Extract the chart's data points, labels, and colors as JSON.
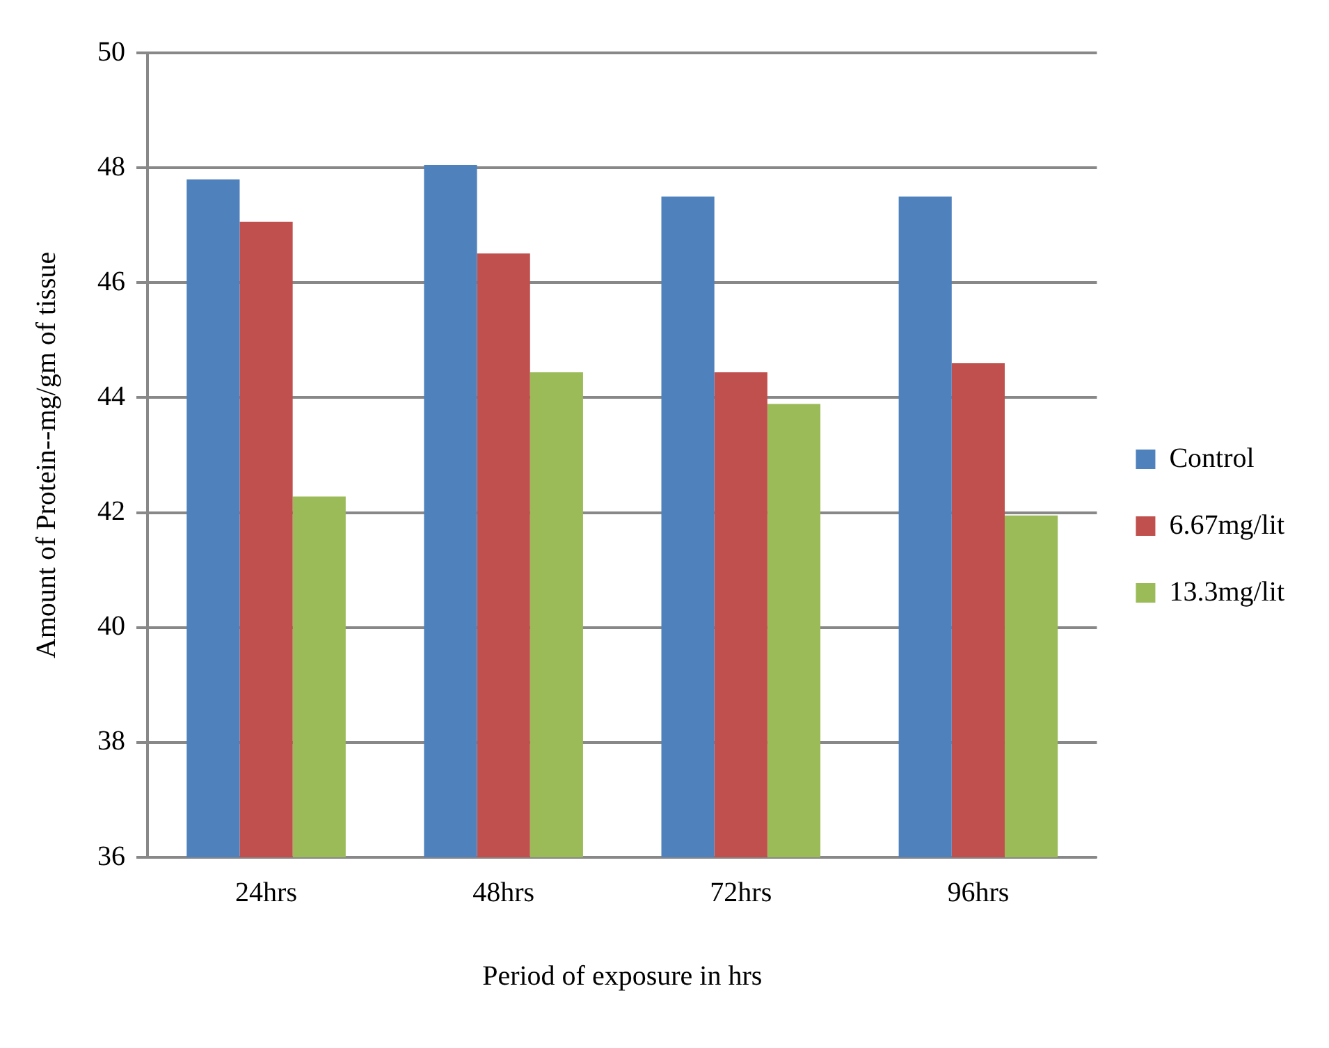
{
  "chart_data": {
    "type": "bar",
    "xlabel": "Period of exposure in hrs",
    "ylabel": "Amount of Protein--mg/gm of tissue",
    "categories": [
      "24hrs",
      "48hrs",
      "72hrs",
      "96hrs"
    ],
    "series": [
      {
        "name": "Control",
        "color": "#4f81bd",
        "values": [
          47.8,
          48.05,
          47.5,
          47.5
        ]
      },
      {
        "name": "6.67mg/lit",
        "color": "#c0504d",
        "values": [
          47.06,
          46.51,
          44.44,
          44.6
        ]
      },
      {
        "name": "13.3mg/lit",
        "color": "#9bbb59",
        "values": [
          42.28,
          44.44,
          43.89,
          41.95
        ]
      }
    ],
    "ylim": [
      36,
      50
    ],
    "yticks": [
      36,
      38,
      40,
      42,
      44,
      46,
      48,
      50
    ],
    "grid": "y",
    "legend": "right"
  }
}
